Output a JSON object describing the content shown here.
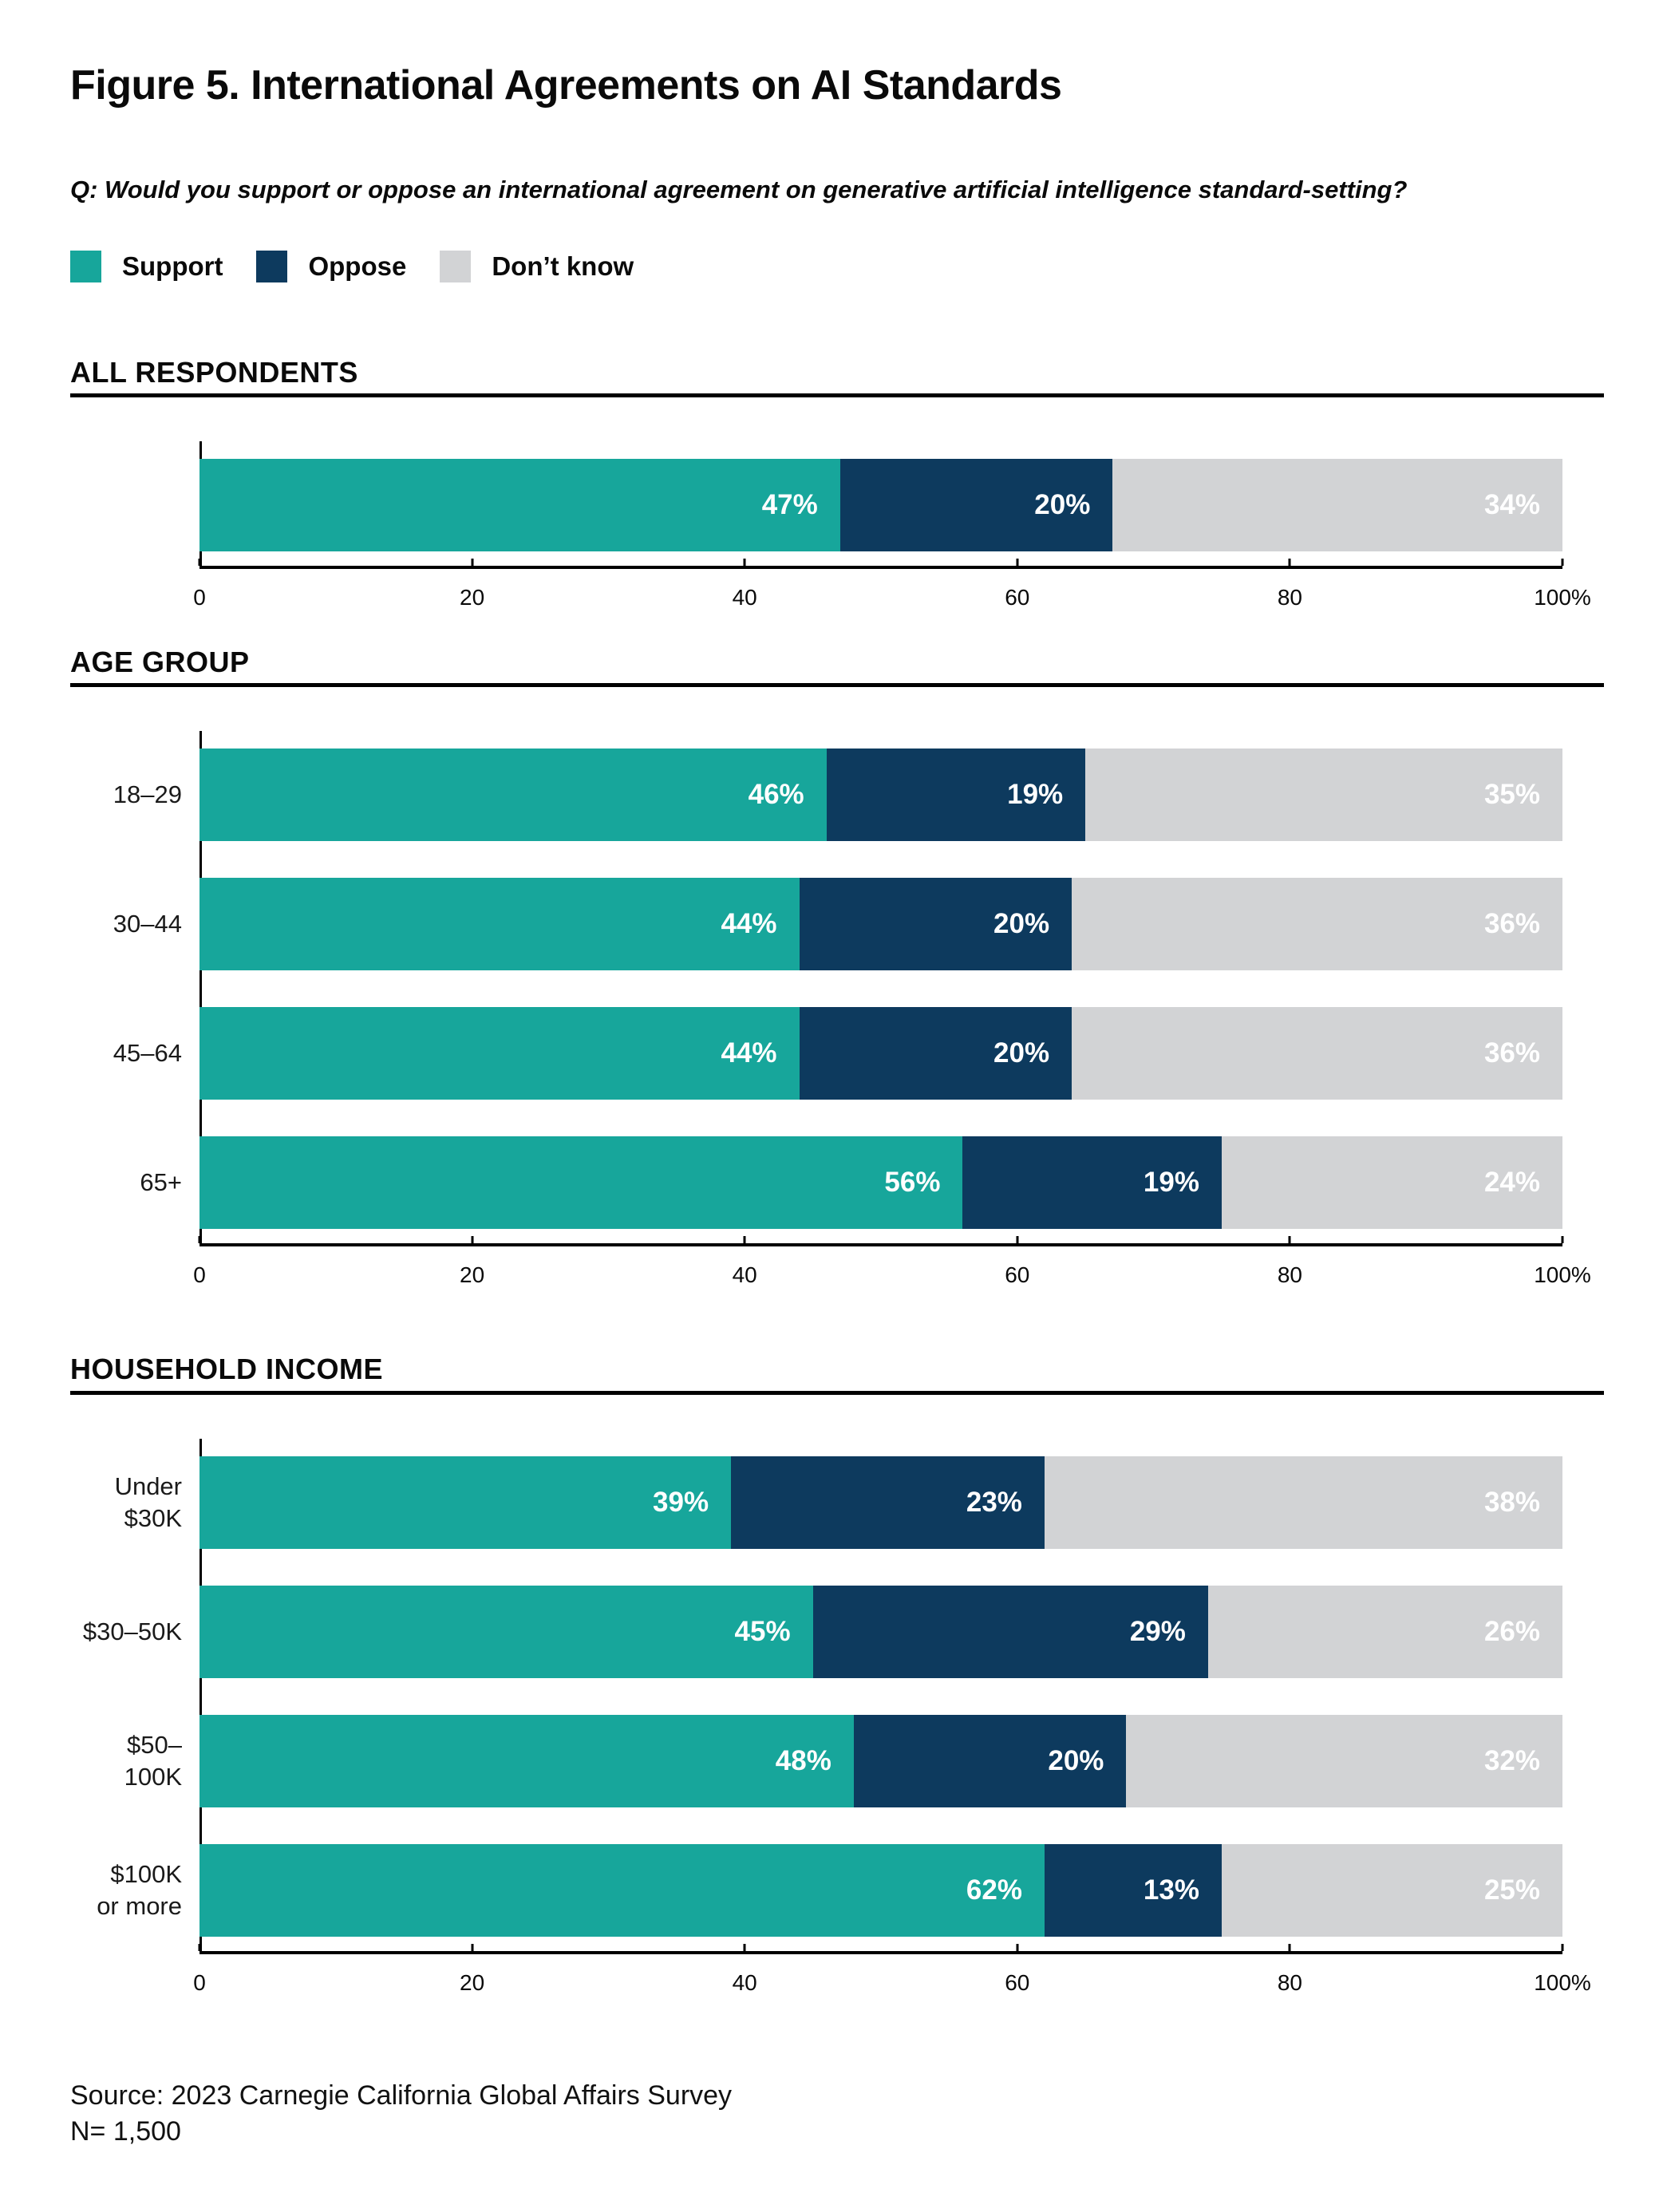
{
  "page": {
    "title": "Figure 5. International Agreements on AI Standards",
    "question": "Q: Would you support or oppose an international agreement on generative artificial intelligence standard-setting?",
    "source": {
      "line1": "Source: 2023 Carnegie California Global Affairs Survey",
      "line2": "N= 1,500"
    }
  },
  "colors": {
    "support": "#17A69B",
    "oppose": "#0D3A5E",
    "dont_know": "#D2D3D5",
    "axis": "#000000",
    "rule": "#000000",
    "bar_label_text": "#FFFFFF"
  },
  "legend": [
    {
      "key": "support",
      "label": "Support",
      "color": "#17A69B"
    },
    {
      "key": "oppose",
      "label": "Oppose",
      "color": "#0D3A5E"
    },
    {
      "key": "dont-know",
      "label": "Don’t know",
      "color": "#D2D3D5"
    }
  ],
  "chart_data": [
    {
      "type": "bar",
      "orientation": "horizontal",
      "stacked": true,
      "section_title": "ALL RESPONDENTS",
      "categories": [
        ""
      ],
      "series": [
        {
          "name": "Support",
          "color": "#17A69B",
          "values": [
            47
          ]
        },
        {
          "name": "Oppose",
          "color": "#0D3A5E",
          "values": [
            20
          ]
        },
        {
          "name": "Don’t know",
          "color": "#D2D3D5",
          "values": [
            34
          ]
        }
      ],
      "value_suffix": "%",
      "xlim": [
        0,
        100
      ],
      "xticks": [
        0,
        20,
        40,
        60,
        80,
        100
      ],
      "xtick_labels": [
        "0",
        "20",
        "40",
        "60",
        "80",
        "100%"
      ],
      "grid": false,
      "legend_position": "top"
    },
    {
      "type": "bar",
      "orientation": "horizontal",
      "stacked": true,
      "section_title": "AGE GROUP",
      "categories": [
        "18–29",
        "30–44",
        "45–64",
        "65+"
      ],
      "series": [
        {
          "name": "Support",
          "color": "#17A69B",
          "values": [
            46,
            44,
            44,
            56
          ]
        },
        {
          "name": "Oppose",
          "color": "#0D3A5E",
          "values": [
            19,
            20,
            20,
            19
          ]
        },
        {
          "name": "Don’t know",
          "color": "#D2D3D5",
          "values": [
            35,
            36,
            36,
            24
          ]
        }
      ],
      "value_suffix": "%",
      "xlim": [
        0,
        100
      ],
      "xticks": [
        0,
        20,
        40,
        60,
        80,
        100
      ],
      "xtick_labels": [
        "0",
        "20",
        "40",
        "60",
        "80",
        "100%"
      ],
      "grid": false,
      "legend_position": "top"
    },
    {
      "type": "bar",
      "orientation": "horizontal",
      "stacked": true,
      "section_title": "HOUSEHOLD INCOME",
      "categories": [
        "Under $30K",
        "$30–50K",
        "$50–100K",
        "$100K\nor more"
      ],
      "series": [
        {
          "name": "Support",
          "color": "#17A69B",
          "values": [
            39,
            45,
            48,
            62
          ]
        },
        {
          "name": "Oppose",
          "color": "#0D3A5E",
          "values": [
            23,
            29,
            20,
            13
          ]
        },
        {
          "name": "Don’t know",
          "color": "#D2D3D5",
          "values": [
            38,
            26,
            32,
            25
          ]
        }
      ],
      "value_suffix": "%",
      "xlim": [
        0,
        100
      ],
      "xticks": [
        0,
        20,
        40,
        60,
        80,
        100
      ],
      "xtick_labels": [
        "0",
        "20",
        "40",
        "60",
        "80",
        "100%"
      ],
      "grid": false,
      "legend_position": "top"
    }
  ]
}
